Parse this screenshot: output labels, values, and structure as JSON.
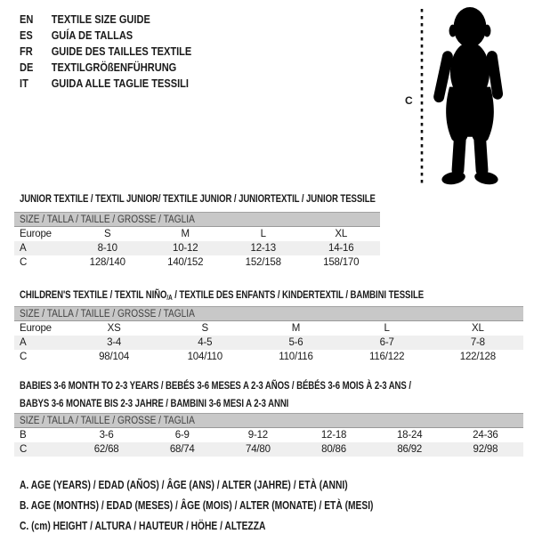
{
  "colors": {
    "ink": "#1a1a1a",
    "bar_bg": "#c8c8c8",
    "bar_text": "#3f3f3f",
    "row_shaded": "#efefef",
    "silhouette": "#000000"
  },
  "languages": [
    {
      "code": "EN",
      "label": "TEXTILE SIZE GUIDE"
    },
    {
      "code": "ES",
      "label": "GUÍA DE TALLAS"
    },
    {
      "code": "FR",
      "label": "GUIDE DES TAILLES TEXTILE"
    },
    {
      "code": "DE",
      "label": "TEXTILGRÖßENFÜHRUNG"
    },
    {
      "code": "IT",
      "label": "GUIDA ALLE TAGLIE TESSILI"
    }
  ],
  "figure": {
    "label": "C",
    "icon": "baby-silhouette"
  },
  "tables": [
    {
      "title": "JUNIOR TEXTILE / TEXTIL JUNIOR/ TEXTILE JUNIOR / JUNIORTEXTIL / JUNIOR TESSILE",
      "size_bar": "SIZE / TALLA / TAILLE / GRÖSSE / TAGLIA",
      "columns": [
        "Europe",
        "S",
        "M",
        "L",
        "XL"
      ],
      "rows": [
        {
          "label": "A",
          "shaded": true,
          "values": [
            "8-10",
            "10-12",
            "12-13",
            "14-16"
          ]
        },
        {
          "label": "C",
          "shaded": false,
          "values": [
            "128/140",
            "140/152",
            "152/158",
            "158/170"
          ]
        }
      ]
    },
    {
      "title_pre": "CHILDREN'S TEXTILE / TEXTIL NIÑO",
      "title_sub": "/A",
      "title_post": " / TEXTILE DES ENFANTS / KINDERTEXTIL / BAMBINI TESSILE",
      "size_bar": "SIZE / TALLA / TAILLE / GRÖSSE / TAGLIA",
      "columns": [
        "Europe",
        "XS",
        "S",
        "M",
        "L",
        "XL"
      ],
      "rows": [
        {
          "label": "A",
          "shaded": true,
          "values": [
            "3-4",
            "4-5",
            "5-6",
            "6-7",
            "7-8"
          ]
        },
        {
          "label": "C",
          "shaded": false,
          "values": [
            "98/104",
            "104/110",
            "110/116",
            "116/122",
            "122/128"
          ]
        }
      ]
    },
    {
      "title_line1": "BABIES 3-6 MONTH TO 2-3 YEARS / BEBÉS 3-6 MESES A 2-3 AÑOS / BÉBÉS 3-6 MOIS À 2-3 ANS /",
      "title_line2": "BABYS 3-6 MONATE BIS 2-3 JAHRE / BAMBINI 3-6 MESI A 2-3 ANNI",
      "size_bar": "SIZE / TALLA / TAILLE / GRÖSSE / TAGLIA",
      "columns": null,
      "rows": [
        {
          "label": "B",
          "shaded": false,
          "values": [
            "3-6",
            "6-9",
            "9-12",
            "12-18",
            "18-24",
            "24-36"
          ]
        },
        {
          "label": "C",
          "shaded": true,
          "values": [
            "62/68",
            "68/74",
            "74/80",
            "80/86",
            "86/92",
            "92/98"
          ]
        }
      ]
    }
  ],
  "legend": [
    "A. AGE (YEARS) / EDAD (AÑOS) / ÂGE (ANS) / ALTER (JAHRE) / ETÀ (ANNI)",
    "B. AGE (MONTHS) / EDAD (MESES) / ÂGE (MOIS) / ALTER (MONATE) / ETÀ (MESI)",
    "C. (cm) HEIGHT / ALTURA / HAUTEUR / HÖHE / ALTEZZA"
  ]
}
